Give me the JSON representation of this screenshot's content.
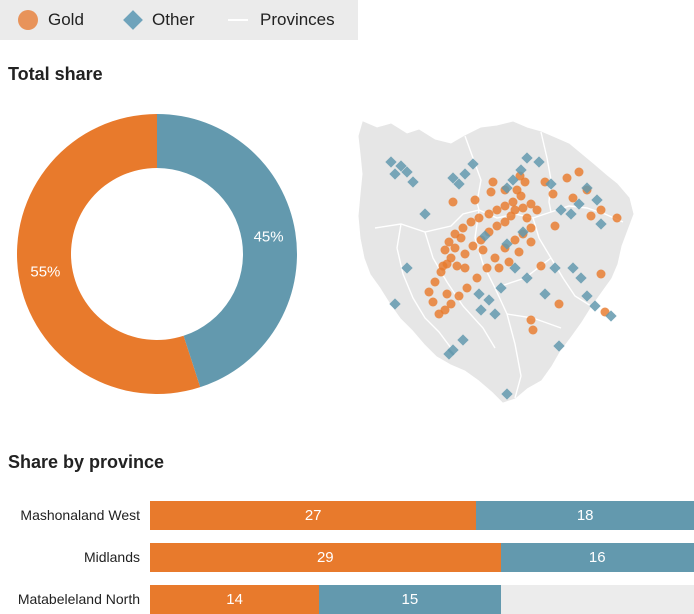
{
  "legend": {
    "items": [
      {
        "label": "Gold",
        "symbol": "circle",
        "color": "#e8935a"
      },
      {
        "label": "Other",
        "symbol": "diamond",
        "color": "#6fa3bb"
      },
      {
        "label": "Provinces",
        "symbol": "line",
        "color": "#ffffff"
      }
    ]
  },
  "colors": {
    "gold": "#e87a2c",
    "other": "#6399ae",
    "map_land": "#e6e6e6"
  },
  "chart_data": [
    {
      "type": "pie",
      "title": "Total share",
      "donut": true,
      "slices": [
        {
          "name": "Gold",
          "value": 55,
          "label": "55%"
        },
        {
          "name": "Other",
          "value": 45,
          "label": "45%"
        }
      ]
    },
    {
      "type": "bar",
      "orientation": "horizontal",
      "stacked": true,
      "title": "Share by province",
      "categories": [
        "Mashonaland West",
        "Midlands",
        "Matabeleland North"
      ],
      "series": [
        {
          "name": "Gold",
          "values": [
            27,
            29,
            14
          ]
        },
        {
          "name": "Other",
          "values": [
            18,
            16,
            15
          ]
        }
      ],
      "xlim": [
        0,
        45
      ]
    }
  ]
}
